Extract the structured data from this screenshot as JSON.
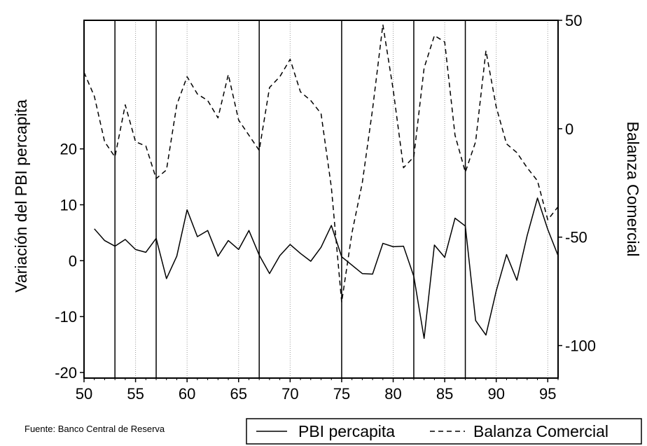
{
  "chart_data": {
    "type": "line",
    "x": [
      51,
      52,
      53,
      54,
      55,
      56,
      57,
      58,
      59,
      60,
      61,
      62,
      63,
      64,
      65,
      66,
      67,
      68,
      69,
      70,
      71,
      72,
      73,
      74,
      75,
      76,
      77,
      78,
      79,
      80,
      81,
      82,
      83,
      84,
      85,
      86,
      87,
      88,
      89,
      90,
      91,
      92,
      93,
      94,
      95,
      96
    ],
    "x_left": [
      50,
      51,
      52,
      53,
      54,
      55,
      56,
      57,
      58,
      59,
      60,
      61,
      62,
      63,
      64,
      65,
      66,
      67,
      68,
      69,
      70,
      71,
      72,
      73,
      74,
      75,
      76,
      77,
      78,
      79,
      80,
      81,
      82,
      83,
      84,
      85,
      86,
      87,
      88,
      89,
      90,
      91,
      92,
      93,
      94,
      95,
      96
    ],
    "series": [
      {
        "name": "PBI percapita",
        "axis": "left",
        "style": "solid",
        "x": [
          51,
          52,
          53,
          54,
          55,
          56,
          57,
          58,
          59,
          60,
          61,
          62,
          63,
          64,
          65,
          66,
          67,
          68,
          69,
          70,
          71,
          72,
          73,
          74,
          75,
          76,
          77,
          78,
          79,
          80,
          81,
          82,
          83,
          84,
          85,
          86,
          87,
          88,
          89,
          90,
          91,
          92,
          93,
          94,
          95,
          96
        ],
        "values": [
          5.7,
          3.6,
          2.6,
          3.8,
          2.0,
          1.5,
          4.0,
          -3.2,
          0.8,
          9.1,
          4.3,
          5.4,
          0.8,
          3.6,
          2.0,
          5.4,
          1.0,
          -2.3,
          0.9,
          2.9,
          1.3,
          -0.1,
          2.4,
          6.3,
          0.7,
          -0.8,
          -2.3,
          -2.4,
          3.1,
          2.5,
          2.6,
          -2.8,
          -13.9,
          2.8,
          0.6,
          7.6,
          6.2,
          -10.7,
          -13.3,
          -5.4,
          1.1,
          -3.5,
          4.5,
          11.2,
          5.6,
          0.9
        ]
      },
      {
        "name": "Balanza Comercial",
        "axis": "right",
        "style": "dashed",
        "x": [
          50,
          51,
          52,
          53,
          54,
          55,
          56,
          57,
          58,
          59,
          60,
          61,
          62,
          63,
          64,
          65,
          66,
          67,
          68,
          69,
          70,
          71,
          72,
          73,
          74,
          75,
          76,
          77,
          78,
          79,
          80,
          81,
          82,
          83,
          84,
          85,
          86,
          87,
          88,
          89,
          90,
          91,
          92,
          93,
          94,
          95,
          96
        ],
        "values": [
          26,
          15,
          -6,
          -13,
          11,
          -6,
          -8,
          -23,
          -19,
          11,
          24,
          16,
          13,
          5,
          25,
          4,
          -3,
          -10,
          19,
          24,
          32,
          17,
          13,
          7,
          -27,
          -80,
          -48,
          -25,
          9,
          48,
          18,
          -18,
          -13,
          28,
          43,
          40,
          -3,
          -20,
          -6,
          36,
          10,
          -7,
          -11,
          -18,
          -24,
          -42,
          -36
        ]
      }
    ],
    "left_axis": {
      "label": "Variación del PBI percapita",
      "ylim": [
        -21,
        43
      ],
      "ticks": [
        20,
        10,
        0,
        -10,
        -20
      ],
      "tick_labels": [
        "20",
        "10",
        "0",
        "-10",
        "-20"
      ]
    },
    "right_axis": {
      "label": "Balanza Comercial",
      "ylim": [
        -115,
        50
      ],
      "ticks": [
        50,
        0,
        -50,
        -100
      ],
      "tick_labels": [
        "50",
        "0",
        "-50",
        "-100"
      ]
    },
    "x_axis": {
      "xlim": [
        50,
        96
      ],
      "ticks": [
        50,
        55,
        60,
        65,
        70,
        75,
        80,
        85,
        90,
        95
      ],
      "tick_labels": [
        "50",
        "55",
        "60",
        "65",
        "70",
        "75",
        "80",
        "85",
        "90",
        "95"
      ]
    },
    "vertical_markers": [
      53,
      57,
      67,
      75,
      82,
      87
    ],
    "grid": "vertical dotted at 5-year intervals"
  },
  "footer": {
    "source": "Fuente: Banco Central de Reserva"
  },
  "legend": {
    "items": [
      "PBI percapita",
      "Balanza Comercial"
    ]
  }
}
